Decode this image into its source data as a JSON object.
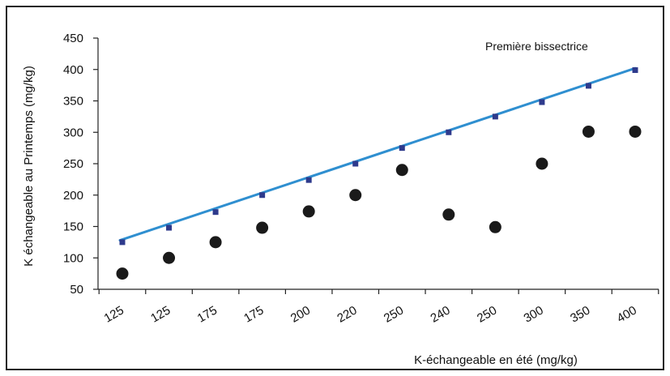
{
  "chart_data": {
    "type": "scatter",
    "title": "",
    "xlabel": "K-échangeable en été (mg/kg)",
    "ylabel": "K échangeable au Printemps (mg/kg)",
    "ylim": [
      50,
      450
    ],
    "yticks": [
      50,
      100,
      150,
      200,
      250,
      300,
      350,
      400,
      450
    ],
    "categories": [
      "125",
      "125",
      "175",
      "175",
      "200",
      "220",
      "250",
      "240",
      "250",
      "300",
      "350",
      "400"
    ],
    "annotation": "Première bissectrice",
    "grid": false,
    "legend": "none",
    "series": [
      {
        "marker": "circle",
        "color": "#1a1a1a",
        "values": [
          75,
          100,
          125,
          148,
          174,
          200,
          240,
          169,
          149,
          250,
          301,
          301
        ]
      },
      {
        "marker": "square",
        "color": "#2e3a8c",
        "values": [
          125,
          148,
          173,
          200,
          224,
          250,
          275,
          300,
          325,
          348,
          374,
          399
        ]
      }
    ],
    "bisector_line": {
      "color": "#2f8fd0",
      "y_start": 128,
      "y_end": 402
    }
  }
}
